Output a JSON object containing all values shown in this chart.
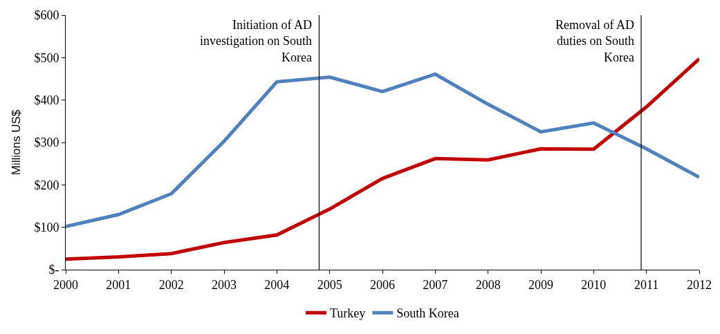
{
  "chart_data": {
    "type": "line",
    "ylabel": "Millions US$",
    "x": [
      2000,
      2001,
      2002,
      2003,
      2004,
      2005,
      2006,
      2007,
      2008,
      2009,
      2010,
      2011,
      2012
    ],
    "series": [
      {
        "name": "Turkey",
        "color": "#c00000",
        "values": [
          25,
          30,
          38,
          64,
          82,
          143,
          215,
          262,
          259,
          285,
          284,
          384,
          497
        ]
      },
      {
        "name": "South Korea",
        "color": "#4f81bd",
        "values": [
          102,
          130,
          179,
          303,
          443,
          454,
          420,
          461,
          390,
          325,
          346,
          285,
          218
        ]
      }
    ],
    "xlim": [
      2000,
      2012
    ],
    "xticks": [
      2000,
      2001,
      2002,
      2003,
      2004,
      2005,
      2006,
      2007,
      2008,
      2009,
      2010,
      2011,
      2012
    ],
    "ylim": [
      0,
      600
    ],
    "yticks": [
      {
        "value": 0,
        "label": "$-"
      },
      {
        "value": 100,
        "label": "$100"
      },
      {
        "value": 200,
        "label": "$200"
      },
      {
        "value": 300,
        "label": "$300"
      },
      {
        "value": 400,
        "label": "$400"
      },
      {
        "value": 500,
        "label": "$500"
      },
      {
        "value": 600,
        "label": "$600"
      }
    ],
    "ref_lines": [
      {
        "axis": "x",
        "value": 2004.8,
        "label": "Initiation of AD investigation on South Korea",
        "color": "#000000"
      },
      {
        "axis": "x",
        "value": 2010.9,
        "label": "Removal of AD duties on South Korea",
        "color": "#000000"
      }
    ],
    "legend": "bottom",
    "marker": "none",
    "line_style": "solid"
  }
}
